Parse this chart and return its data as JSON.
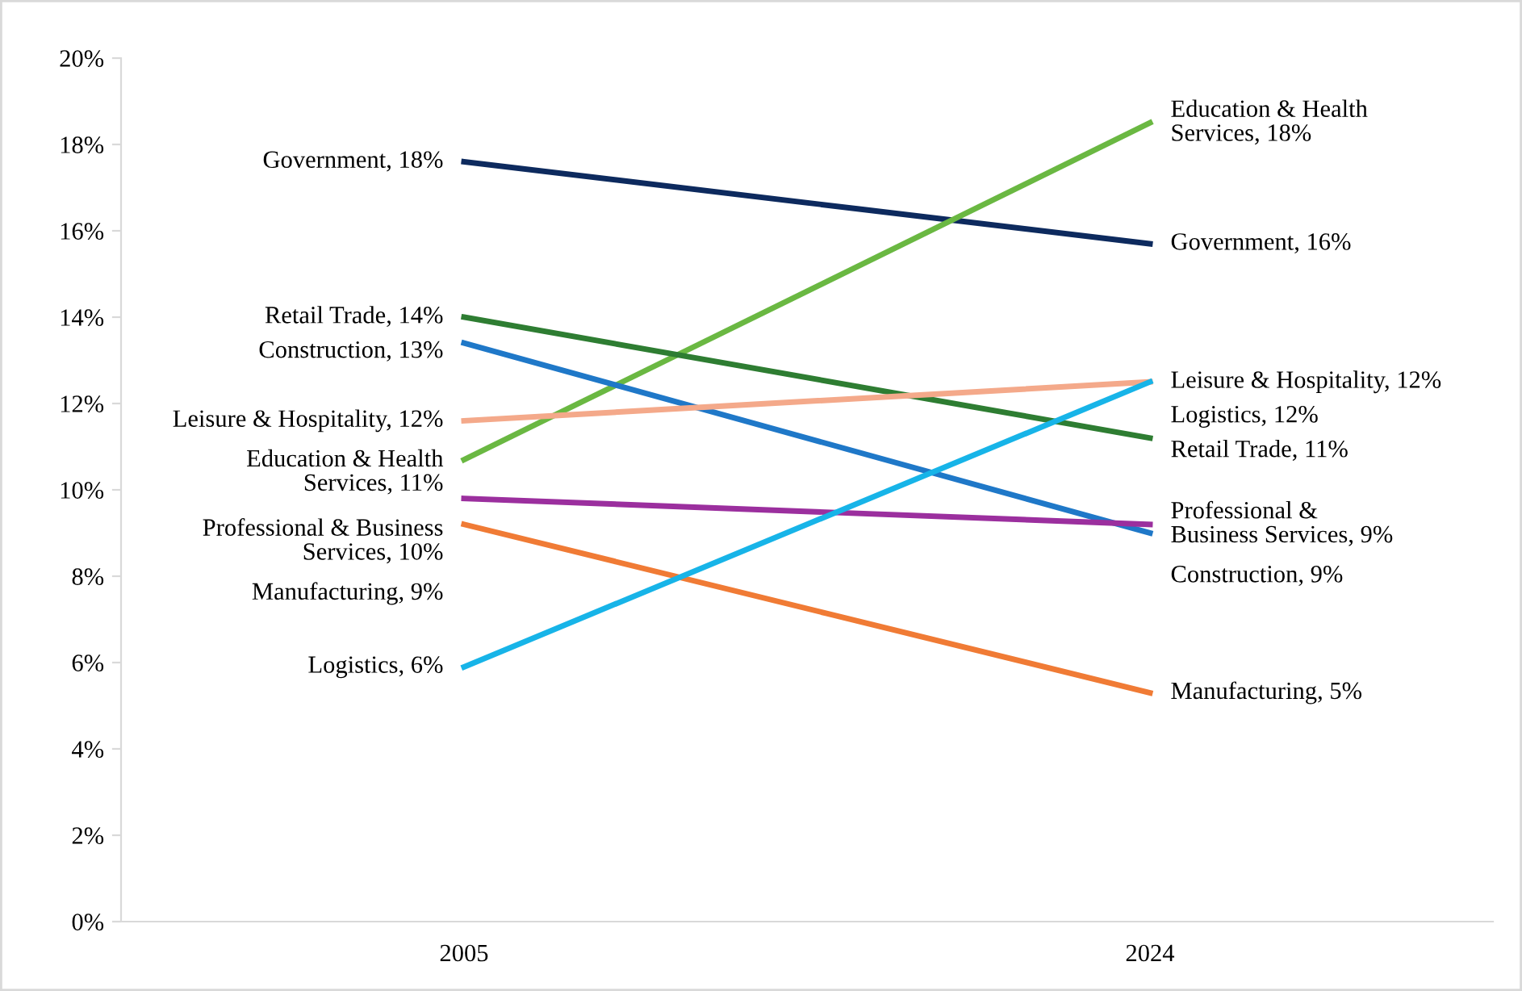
{
  "chart_data": {
    "type": "line",
    "categories": [
      "2005",
      "2024"
    ],
    "ylim": [
      0,
      20
    ],
    "yticks": [
      {
        "value": 0,
        "label": "0%"
      },
      {
        "value": 2,
        "label": "2%"
      },
      {
        "value": 4,
        "label": "4%"
      },
      {
        "value": 6,
        "label": "6%"
      },
      {
        "value": 8,
        "label": "8%"
      },
      {
        "value": 10,
        "label": "10%"
      },
      {
        "value": 12,
        "label": "12%"
      },
      {
        "value": 14,
        "label": "14%"
      },
      {
        "value": 16,
        "label": "16%"
      },
      {
        "value": 18,
        "label": "18%"
      },
      {
        "value": 20,
        "label": "20%"
      }
    ],
    "grid": false,
    "marker": "none",
    "line_style": "solid",
    "series": [
      {
        "color": "#0d2a5e",
        "values": [
          17.6,
          15.7
        ],
        "value_labels": [
          "Government, 18%",
          "Government, 16%"
        ]
      },
      {
        "color": "#6ab842",
        "values": [
          10.7,
          18.5
        ],
        "value_labels": [
          "Education & Health\nServices, 11%",
          "Education & Health\nServices, 18%"
        ]
      },
      {
        "color": "#2e7d32",
        "values": [
          14.0,
          11.2
        ],
        "value_labels": [
          "Retail Trade, 14%",
          "Retail Trade, 11%"
        ]
      },
      {
        "color": "#1f78c8",
        "values": [
          13.4,
          9.0
        ],
        "value_labels": [
          "Construction, 13%",
          "Construction, 9%"
        ]
      },
      {
        "color": "#f4a98a",
        "values": [
          11.6,
          12.5
        ],
        "value_labels": [
          "Leisure & Hospitality, 12%",
          "Leisure & Hospitality, 12%"
        ]
      },
      {
        "color": "#9b2f9e",
        "values": [
          9.8,
          9.2
        ],
        "value_labels": [
          "Professional & Business\nServices, 10%",
          "Professional &\nBusiness Services, 9%"
        ]
      },
      {
        "color": "#f07b35",
        "values": [
          9.2,
          5.3
        ],
        "value_labels": [
          "Manufacturing, 9%",
          "Manufacturing, 5%"
        ]
      },
      {
        "color": "#17b4e8",
        "values": [
          5.9,
          12.5
        ],
        "value_labels": [
          "Logistics, 6%",
          "Logistics, 12%"
        ]
      }
    ]
  }
}
